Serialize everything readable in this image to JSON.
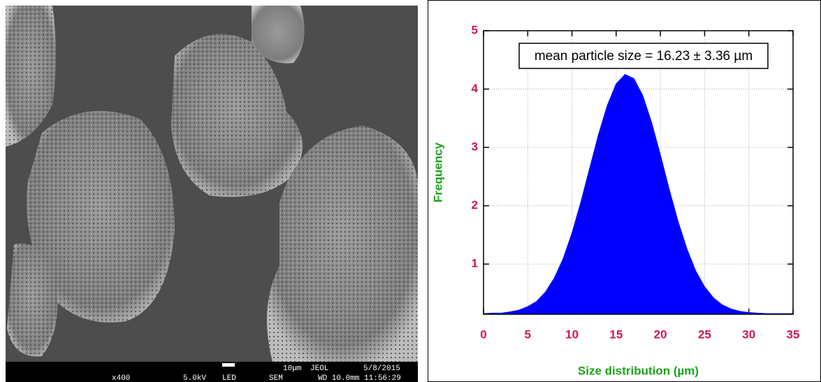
{
  "micrograph": {
    "info_top": [
      "10µm",
      "JEOL",
      "5/8/2015"
    ],
    "info_bottom": [
      "x400",
      "5.0kV",
      "LED",
      "SEM",
      "WD 10.0mm 11:56:29"
    ]
  },
  "chart_data": {
    "type": "area",
    "annotation": "mean particle size = 16.23 ± 3.36 µm",
    "x_label": "Size distribution (µm)",
    "y_label": "Frequency",
    "x": [
      0,
      1,
      2,
      3,
      4,
      5,
      6,
      7,
      8,
      9,
      10,
      11,
      12,
      13,
      14,
      15,
      16,
      17,
      18,
      19,
      20,
      21,
      22,
      23,
      24,
      25,
      26,
      27,
      28,
      29,
      30,
      31,
      32,
      33,
      34,
      35
    ],
    "values": [
      0.15,
      0.16,
      0.16,
      0.18,
      0.21,
      0.27,
      0.36,
      0.52,
      0.76,
      1.09,
      1.53,
      2.06,
      2.64,
      3.22,
      3.72,
      4.09,
      4.25,
      4.18,
      3.89,
      3.43,
      2.87,
      2.28,
      1.73,
      1.26,
      0.88,
      0.61,
      0.42,
      0.3,
      0.23,
      0.19,
      0.17,
      0.16,
      0.15,
      0.15,
      0.15,
      0.15
    ],
    "color": "#0000ff",
    "xlim": [
      0,
      35
    ],
    "ylim": [
      0.14,
      5
    ],
    "xticks": [
      0,
      5,
      10,
      15,
      20,
      25,
      30,
      35
    ],
    "yticks": [
      1,
      2,
      3,
      4,
      5
    ],
    "grid": true
  }
}
